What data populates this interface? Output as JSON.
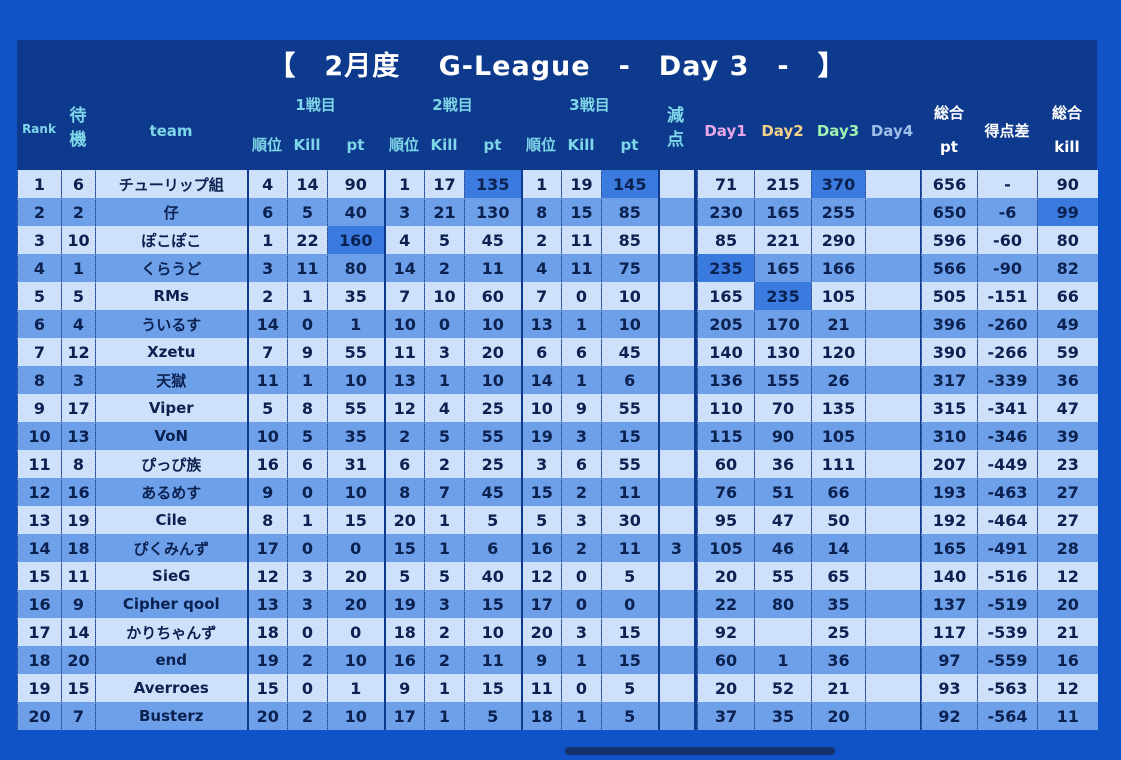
{
  "title": "【　2月度　 G-League　-　Day 3　-　】",
  "headers": {
    "rank": "Rank",
    "wait": "待機",
    "team": "team",
    "round1": "1戦目",
    "round2": "2戦目",
    "round3": "3戦目",
    "place": "順位",
    "kill": "Kill",
    "pt": "pt",
    "penalty": "減点",
    "day1": "Day1",
    "day2": "Day2",
    "day3": "Day3",
    "day4": "Day4",
    "total": "総合",
    "total_pt": "pt",
    "diff": "得点差",
    "total_kill_top": "総合",
    "total_kill_bottom": "kill"
  },
  "rows": [
    [
      "1",
      "6",
      "チューリップ組",
      "4",
      "14",
      "90",
      "1",
      "17",
      "135",
      "1",
      "19",
      "145",
      "",
      "71",
      "215",
      "370",
      "",
      "656",
      "-",
      "90"
    ],
    [
      "2",
      "2",
      "仔",
      "6",
      "5",
      "40",
      "3",
      "21",
      "130",
      "8",
      "15",
      "85",
      "",
      "230",
      "165",
      "255",
      "",
      "650",
      "-6",
      "99"
    ],
    [
      "3",
      "10",
      "ぽこぽこ",
      "1",
      "22",
      "160",
      "4",
      "5",
      "45",
      "2",
      "11",
      "85",
      "",
      "85",
      "221",
      "290",
      "",
      "596",
      "-60",
      "80"
    ],
    [
      "4",
      "1",
      "くらうど",
      "3",
      "11",
      "80",
      "14",
      "2",
      "11",
      "4",
      "11",
      "75",
      "",
      "235",
      "165",
      "166",
      "",
      "566",
      "-90",
      "82"
    ],
    [
      "5",
      "5",
      "RMs",
      "2",
      "1",
      "35",
      "7",
      "10",
      "60",
      "7",
      "0",
      "10",
      "",
      "165",
      "235",
      "105",
      "",
      "505",
      "-151",
      "66"
    ],
    [
      "6",
      "4",
      "ういるす",
      "14",
      "0",
      "1",
      "10",
      "0",
      "10",
      "13",
      "1",
      "10",
      "",
      "205",
      "170",
      "21",
      "",
      "396",
      "-260",
      "49"
    ],
    [
      "7",
      "12",
      "Xzetu",
      "7",
      "9",
      "55",
      "11",
      "3",
      "20",
      "6",
      "6",
      "45",
      "",
      "140",
      "130",
      "120",
      "",
      "390",
      "-266",
      "59"
    ],
    [
      "8",
      "3",
      "天獄",
      "11",
      "1",
      "10",
      "13",
      "1",
      "10",
      "14",
      "1",
      "6",
      "",
      "136",
      "155",
      "26",
      "",
      "317",
      "-339",
      "36"
    ],
    [
      "9",
      "17",
      "Viper",
      "5",
      "8",
      "55",
      "12",
      "4",
      "25",
      "10",
      "9",
      "55",
      "",
      "110",
      "70",
      "135",
      "",
      "315",
      "-341",
      "47"
    ],
    [
      "10",
      "13",
      "VoN",
      "10",
      "5",
      "35",
      "2",
      "5",
      "55",
      "19",
      "3",
      "15",
      "",
      "115",
      "90",
      "105",
      "",
      "310",
      "-346",
      "39"
    ],
    [
      "11",
      "8",
      "ぴっぴ族",
      "16",
      "6",
      "31",
      "6",
      "2",
      "25",
      "3",
      "6",
      "55",
      "",
      "60",
      "36",
      "111",
      "",
      "207",
      "-449",
      "23"
    ],
    [
      "12",
      "16",
      "あるめす",
      "9",
      "0",
      "10",
      "8",
      "7",
      "45",
      "15",
      "2",
      "11",
      "",
      "76",
      "51",
      "66",
      "",
      "193",
      "-463",
      "27"
    ],
    [
      "13",
      "19",
      "Cile",
      "8",
      "1",
      "15",
      "20",
      "1",
      "5",
      "5",
      "3",
      "30",
      "",
      "95",
      "47",
      "50",
      "",
      "192",
      "-464",
      "27"
    ],
    [
      "14",
      "18",
      "ぴくみんず",
      "17",
      "0",
      "0",
      "15",
      "1",
      "6",
      "16",
      "2",
      "11",
      "3",
      "105",
      "46",
      "14",
      "",
      "165",
      "-491",
      "28"
    ],
    [
      "15",
      "11",
      "SieG",
      "12",
      "3",
      "20",
      "5",
      "5",
      "40",
      "12",
      "0",
      "5",
      "",
      "20",
      "55",
      "65",
      "",
      "140",
      "-516",
      "12"
    ],
    [
      "16",
      "9",
      "Cipher qool",
      "13",
      "3",
      "20",
      "19",
      "3",
      "15",
      "17",
      "0",
      "0",
      "",
      "22",
      "80",
      "35",
      "",
      "137",
      "-519",
      "20"
    ],
    [
      "17",
      "14",
      "かりちゃんず",
      "18",
      "0",
      "0",
      "18",
      "2",
      "10",
      "20",
      "3",
      "15",
      "",
      "92",
      "",
      "25",
      "",
      "117",
      "-539",
      "21"
    ],
    [
      "18",
      "20",
      "end",
      "19",
      "2",
      "10",
      "16",
      "2",
      "11",
      "9",
      "1",
      "15",
      "",
      "60",
      "1",
      "36",
      "",
      "97",
      "-559",
      "16"
    ],
    [
      "19",
      "15",
      "Averroes",
      "15",
      "0",
      "1",
      "9",
      "1",
      "15",
      "11",
      "0",
      "5",
      "",
      "20",
      "52",
      "21",
      "",
      "93",
      "-563",
      "12"
    ],
    [
      "20",
      "7",
      "Busterz",
      "20",
      "2",
      "10",
      "17",
      "1",
      "5",
      "18",
      "1",
      "5",
      "",
      "37",
      "35",
      "20",
      "",
      "92",
      "-564",
      "11"
    ]
  ],
  "highlights": [
    [
      0,
      8
    ],
    [
      0,
      11
    ],
    [
      0,
      15
    ],
    [
      1,
      19
    ],
    [
      2,
      5
    ],
    [
      3,
      13
    ],
    [
      4,
      14
    ]
  ],
  "colors": {
    "background": "#0f53c6",
    "panel": "#0d3a8c",
    "row_light": "#cfe0fa",
    "row_dark": "#6ea0ea",
    "highlight": "#3b7be0",
    "header_text": "#7fd6e8"
  }
}
